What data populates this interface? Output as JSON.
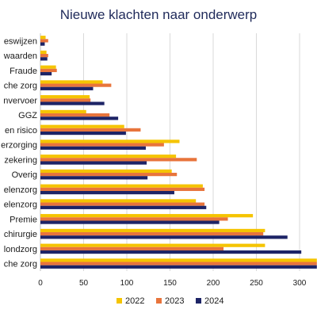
{
  "chart_data": {
    "type": "bar",
    "orientation": "horizontal",
    "title": "Nieuwe klachten naar onderwerp",
    "categories": [
      "Declareren & Betaalwijzen",
      "Opzeggingsvoorwaarden",
      "Fraude",
      "Verpleging & Ouderen en Wijkverpleging & Geriatrische zorg",
      "Ziekenvervoer",
      "GGZ",
      "Eigen risico",
      "Aanvullende verzorging",
      "Premie & Verzekering",
      "Overig",
      "Hulpmiddelenzorg",
      "Farmaceutische middelenzorg",
      "Premie",
      "Plastische chirurgie",
      "Mondzorg",
      "Medisch specialistische zorg"
    ],
    "visible_category_labels": [
      "eswijzen",
      "waarden",
      "Fraude",
      "che zorg",
      "nvervoer",
      "GGZ",
      "en risico",
      "erzorging",
      "zekering",
      "Overig",
      "elenzorg",
      "elenzorg",
      "Premie",
      "chirurgie",
      "londzorg",
      "che zorg"
    ],
    "series": [
      {
        "name": "2022",
        "color": "#f5c400",
        "values": [
          6,
          7,
          18,
          72,
          57,
          53,
          97,
          161,
          157,
          152,
          188,
          180,
          246,
          260,
          260,
          320
        ]
      },
      {
        "name": "2023",
        "color": "#e8743b",
        "values": [
          9,
          9,
          19,
          82,
          58,
          80,
          116,
          143,
          181,
          158,
          190,
          190,
          217,
          258,
          212,
          320
        ]
      },
      {
        "name": "2024",
        "color": "#1d2466",
        "values": [
          5,
          8,
          13,
          61,
          74,
          90,
          99,
          122,
          123,
          124,
          155,
          192,
          207,
          286,
          302,
          320
        ]
      }
    ],
    "xlim": [
      0,
      320
    ],
    "xticks": [
      0,
      50,
      100,
      150,
      200,
      250,
      300
    ],
    "grid": true,
    "legend_position": "bottom"
  }
}
